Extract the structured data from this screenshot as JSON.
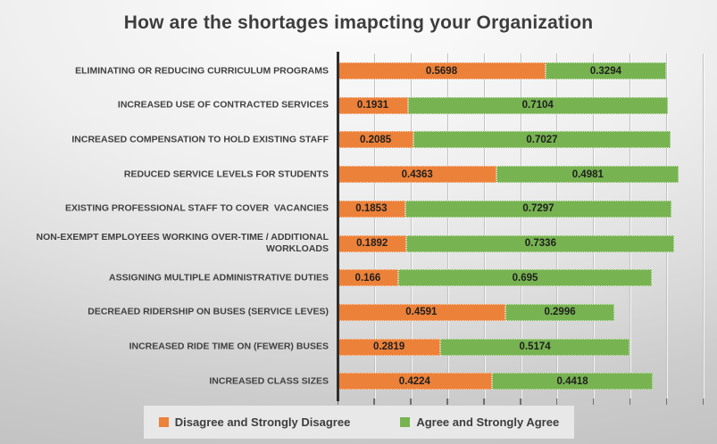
{
  "title": "How are the shortages imapcting your Organization",
  "chart_data": {
    "type": "bar",
    "orientation": "horizontal",
    "stacked": true,
    "title": "How are the shortages imapcting your Organization",
    "categories": [
      "ELIMINATING OR REDUCING CURRICULUM PROGRAMS",
      "INCREASED USE OF CONTRACTED SERVICES",
      "INCREASED COMPENSATION TO HOLD EXISTING STAFF",
      "REDUCED SERVICE LEVELS FOR STUDENTS",
      "EXISTING PROFESSIONAL STAFF TO COVER  VACANCIES",
      "NON-EXEMPT EMPLOYEES WORKING OVER-TIME / ADDITIONAL WORKLOADS",
      "ASSIGNING MULTIPLE ADMINISTRATIVE DUTIES",
      "DECREAED RIDERSHIP ON BUSES (SERVICE LEVES)",
      "INCREASED RIDE TIME ON (FEWER) BUSES",
      "INCREASED CLASS SIZES"
    ],
    "series": [
      {
        "name": "Disagree and Strongly Disagree",
        "color": "#EC8139",
        "values": [
          0.5698,
          0.1931,
          0.2085,
          0.4363,
          0.1853,
          0.1892,
          0.166,
          0.4591,
          0.2819,
          0.4224
        ]
      },
      {
        "name": "Agree and Strongly Agree",
        "color": "#77B351",
        "values": [
          0.3294,
          0.7104,
          0.7027,
          0.4981,
          0.7297,
          0.7336,
          0.695,
          0.2996,
          0.5174,
          0.4418
        ]
      }
    ],
    "xlim": [
      0,
      1.0
    ],
    "gridline_interval": 0.1,
    "grid": true,
    "axis_tick_labels_visible": false,
    "value_labels": "inside-center",
    "legend_position": "bottom"
  }
}
